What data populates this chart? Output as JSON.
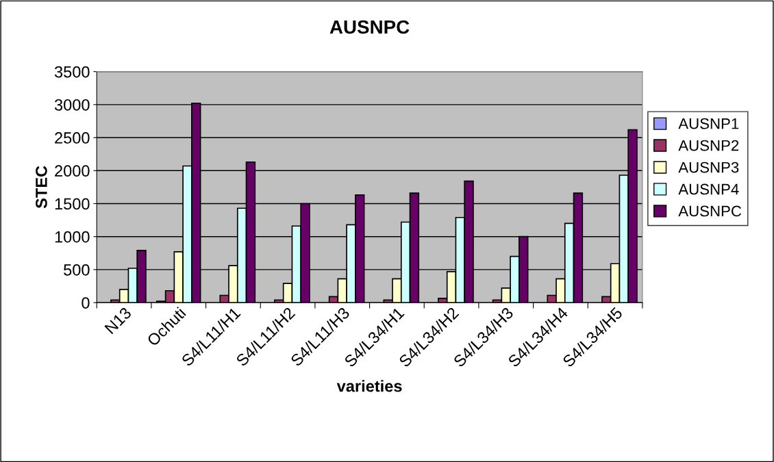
{
  "chart_data": {
    "type": "bar",
    "title": "AUSNPC",
    "xlabel": "varieties",
    "ylabel": "STEC",
    "categories": [
      "N13",
      "Ochuti",
      "S4/L11/H1",
      "S4/L11/H2",
      "S4/L11/H3",
      "S4/L34/H1",
      "S4/L34/H2",
      "S4/L34/H3",
      "S4/L34/H4",
      "S4/L34/H5"
    ],
    "series": [
      {
        "name": "AUSNP1",
        "color": "#9999ff",
        "values": [
          null,
          20,
          null,
          null,
          null,
          null,
          null,
          null,
          null,
          null
        ]
      },
      {
        "name": "AUSNP2",
        "color": "#993366",
        "values": [
          40,
          180,
          110,
          40,
          90,
          40,
          65,
          40,
          110,
          90
        ]
      },
      {
        "name": "AUSNP3",
        "color": "#ffffcc",
        "values": [
          200,
          770,
          560,
          290,
          360,
          360,
          470,
          220,
          360,
          590
        ]
      },
      {
        "name": "AUSNP4",
        "color": "#ccffff",
        "values": [
          520,
          2070,
          1430,
          1160,
          1180,
          1220,
          1290,
          700,
          1200,
          1930
        ]
      },
      {
        "name": "AUSNPC",
        "color": "#660066",
        "values": [
          790,
          3020,
          2130,
          1500,
          1630,
          1660,
          1840,
          1000,
          1660,
          2620
        ]
      }
    ],
    "ylim": [
      0,
      3500
    ],
    "yticks": [
      0,
      500,
      1000,
      1500,
      2000,
      2500,
      3000,
      3500
    ],
    "grid": "y",
    "legend": "right"
  }
}
